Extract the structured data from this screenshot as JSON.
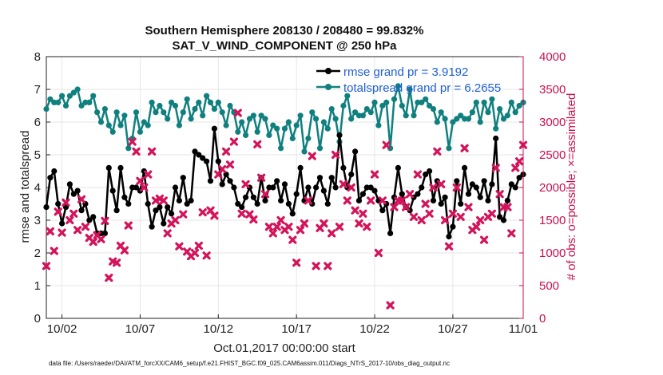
{
  "chart_data": {
    "type": "line",
    "title": "Southern Hemisphere 208130 / 208480 = 99.832%",
    "subtitle": "SAT_V_WIND_COMPONENT @ 250 hPa",
    "xlabel": "Oct.01,2017 00:00:00 start",
    "ylabel": "rmse and totalspread",
    "ylabel_right": "# of obs: o=possible; ×=assimilated",
    "xlim": [
      0.5,
      31.0
    ],
    "ylim": [
      0,
      8
    ],
    "ylim_right": [
      0,
      4000
    ],
    "xticks": [
      1.5,
      6.5,
      11.5,
      16.5,
      21.5,
      26.5,
      31.0
    ],
    "xtick_labels": [
      "10/02",
      "10/07",
      "10/12",
      "10/17",
      "10/22",
      "10/27",
      "11/01"
    ],
    "yticks": [
      "0",
      "1",
      "2",
      "3",
      "4",
      "5",
      "6",
      "7",
      "8"
    ],
    "yticks_right": [
      "0",
      "500",
      "1000",
      "1500",
      "2000",
      "2500",
      "3000",
      "3500",
      "4000"
    ],
    "grid": true,
    "legend_position": "top-right",
    "legend": [
      "rmse grand pr = 3.9192",
      "totalspread grand pr = 6.2655"
    ],
    "colors": {
      "rmse": "#000000",
      "spread": "#10807f",
      "obs": "#d3145b",
      "axis_right": "#c8104e",
      "legend_text": "#1f5fd6"
    },
    "series": [
      {
        "name": "rmse",
        "axis": "left",
        "x": [
          0.5,
          0.75,
          1.0,
          1.25,
          1.5,
          1.75,
          2.0,
          2.25,
          2.5,
          2.75,
          3.0,
          3.25,
          3.5,
          3.75,
          4.0,
          4.25,
          4.5,
          4.75,
          5.0,
          5.25,
          5.5,
          5.75,
          6.0,
          6.25,
          6.5,
          6.75,
          7.0,
          7.25,
          7.5,
          7.75,
          8.0,
          8.25,
          8.5,
          8.75,
          9.0,
          9.25,
          9.5,
          9.75,
          10.0,
          10.25,
          10.5,
          10.75,
          11.0,
          11.25,
          11.5,
          11.75,
          12.0,
          12.25,
          12.5,
          12.75,
          13.0,
          13.25,
          13.5,
          13.75,
          14.0,
          14.25,
          14.5,
          14.75,
          15.0,
          15.25,
          15.5,
          15.75,
          16.0,
          16.25,
          16.5,
          16.75,
          17.0,
          17.25,
          17.5,
          17.75,
          18.0,
          18.25,
          18.5,
          18.75,
          19.0,
          19.25,
          19.5,
          19.75,
          20.0,
          20.25,
          20.5,
          20.75,
          21.0,
          21.25,
          21.5,
          21.75,
          22.0,
          22.25,
          22.5,
          22.75,
          23.0,
          23.25,
          23.5,
          23.75,
          24.0,
          24.25,
          24.5,
          24.75,
          25.0,
          25.25,
          25.5,
          25.75,
          26.0,
          26.25,
          26.5,
          26.75,
          27.0,
          27.25,
          27.5,
          27.75,
          28.0,
          28.25,
          28.5,
          28.75,
          29.0,
          29.25,
          29.5,
          29.75,
          30.0,
          30.25,
          30.5,
          30.75,
          31.0
        ],
        "values": [
          3.4,
          4.3,
          4.5,
          3.5,
          2.9,
          3.4,
          4.1,
          3.8,
          3.9,
          3.3,
          3.5,
          3.0,
          3.1,
          2.6,
          2.6,
          2.6,
          4.6,
          3.9,
          3.3,
          4.6,
          3.7,
          3.5,
          4.0,
          4.0,
          3.9,
          4.5,
          3.5,
          2.8,
          3.3,
          3.4,
          2.9,
          3.4,
          3.2,
          4.0,
          3.6,
          4.3,
          3.5,
          3.6,
          5.1,
          5.0,
          4.9,
          4.8,
          4.2,
          5.8,
          4.8,
          4.1,
          4.4,
          4.2,
          4.0,
          3.5,
          3.4,
          3.7,
          4.0,
          3.7,
          3.5,
          4.3,
          3.6,
          4.0,
          4.0,
          4.2,
          3.6,
          4.1,
          3.5,
          3.2,
          3.8,
          4.6,
          3.6,
          4.0,
          3.5,
          4.0,
          4.3,
          3.9,
          3.5,
          4.3,
          4.0,
          5.6,
          4.6,
          4.0,
          4.4,
          5.1,
          3.6,
          3.8,
          4.0,
          4.0,
          3.9,
          3.6,
          3.3,
          3.5,
          2.6,
          3.7,
          4.6,
          3.8,
          3.4,
          3.3,
          3.7,
          3.8,
          4.0,
          4.4,
          4.5,
          3.6,
          4.2,
          3.5,
          3.7,
          2.5,
          2.8,
          4.2,
          3.5,
          4.6,
          3.8,
          4.1,
          4.0,
          3.7,
          4.2,
          3.6,
          4.1,
          5.5,
          3.1,
          3.0,
          3.6,
          4.1,
          4.0,
          4.3,
          4.4
        ],
        "marker": "circle"
      },
      {
        "name": "totalspread",
        "axis": "left",
        "x": [
          0.5,
          0.75,
          1.0,
          1.25,
          1.5,
          1.75,
          2.0,
          2.25,
          2.5,
          2.75,
          3.0,
          3.25,
          3.5,
          3.75,
          4.0,
          4.25,
          4.5,
          4.75,
          5.0,
          5.25,
          5.5,
          5.75,
          6.0,
          6.25,
          6.5,
          6.75,
          7.0,
          7.25,
          7.5,
          7.75,
          8.0,
          8.25,
          8.5,
          8.75,
          9.0,
          9.25,
          9.5,
          9.75,
          10.0,
          10.25,
          10.5,
          10.75,
          11.0,
          11.25,
          11.5,
          11.75,
          12.0,
          12.25,
          12.5,
          12.75,
          13.0,
          13.25,
          13.5,
          13.75,
          14.0,
          14.25,
          14.5,
          14.75,
          15.0,
          15.25,
          15.5,
          15.75,
          16.0,
          16.25,
          16.5,
          16.75,
          17.0,
          17.25,
          17.5,
          17.75,
          18.0,
          18.25,
          18.5,
          18.75,
          19.0,
          19.25,
          19.5,
          19.75,
          20.0,
          20.25,
          20.5,
          20.75,
          21.0,
          21.25,
          21.5,
          21.75,
          22.0,
          22.25,
          22.5,
          22.75,
          23.0,
          23.25,
          23.5,
          23.75,
          24.0,
          24.25,
          24.5,
          24.75,
          25.0,
          25.25,
          25.5,
          25.75,
          26.0,
          26.25,
          26.5,
          26.75,
          27.0,
          27.25,
          27.5,
          27.75,
          28.0,
          28.25,
          28.5,
          28.75,
          29.0,
          29.25,
          29.5,
          29.75,
          30.0,
          30.25,
          30.5,
          30.75,
          31.0
        ],
        "values": [
          6.4,
          6.7,
          6.6,
          6.6,
          6.8,
          6.5,
          6.8,
          6.9,
          7.0,
          6.5,
          6.6,
          6.6,
          6.8,
          6.3,
          6.0,
          6.4,
          5.9,
          5.7,
          6.3,
          5.9,
          6.2,
          5.2,
          5.5,
          6.3,
          5.7,
          6.0,
          5.9,
          6.6,
          6.3,
          6.5,
          6.3,
          6.1,
          6.6,
          6.5,
          5.9,
          6.3,
          6.7,
          6.1,
          6.4,
          6.6,
          6.2,
          6.8,
          6.6,
          6.4,
          6.6,
          6.3,
          5.9,
          6.5,
          6.3,
          5.7,
          6.0,
          5.6,
          6.1,
          6.2,
          5.7,
          6.2,
          6.1,
          5.6,
          5.9,
          5.8,
          5.2,
          5.8,
          6.0,
          5.5,
          5.9,
          6.2,
          5.1,
          5.5,
          6.3,
          6.1,
          5.2,
          6.0,
          5.8,
          6.4,
          6.1,
          5.4,
          6.5,
          6.8,
          6.1,
          6.3,
          6.2,
          6.2,
          6.4,
          6.3,
          6.6,
          5.9,
          6.5,
          6.6,
          5.2,
          6.7,
          7.1,
          6.5,
          6.2,
          7.0,
          6.2,
          6.6,
          6.6,
          6.7,
          6.5,
          6.4,
          6.0,
          6.3,
          6.1,
          5.2,
          6.0,
          6.1,
          6.2,
          6.1,
          6.1,
          6.3,
          6.6,
          6.0,
          6.6,
          6.3,
          6.7,
          5.8,
          6.4,
          6.1,
          6.2,
          6.6,
          6.3,
          6.5,
          6.6
        ],
        "marker": "circle"
      },
      {
        "name": "# of obs assimilated",
        "axis": "right",
        "x": [
          0.5,
          0.75,
          1.0,
          1.25,
          1.5,
          1.75,
          2.0,
          2.25,
          2.5,
          2.75,
          3.0,
          3.25,
          3.5,
          3.75,
          4.0,
          4.25,
          4.5,
          4.75,
          5.0,
          5.25,
          5.5,
          5.75,
          6.0,
          6.25,
          6.5,
          6.75,
          7.0,
          7.25,
          7.5,
          7.75,
          8.0,
          8.25,
          8.5,
          8.75,
          9.0,
          9.25,
          9.5,
          9.75,
          10.0,
          10.25,
          10.5,
          10.75,
          11.0,
          11.25,
          11.5,
          11.75,
          12.0,
          12.25,
          12.5,
          12.75,
          13.0,
          13.25,
          13.5,
          13.75,
          14.0,
          14.25,
          14.5,
          14.75,
          15.0,
          15.25,
          15.5,
          15.75,
          16.0,
          16.25,
          16.5,
          16.75,
          17.0,
          17.25,
          17.5,
          17.75,
          18.0,
          18.25,
          18.5,
          18.75,
          19.0,
          19.25,
          19.5,
          19.75,
          20.0,
          20.25,
          20.5,
          20.75,
          21.0,
          21.25,
          21.5,
          21.75,
          22.0,
          22.25,
          22.5,
          22.75,
          23.0,
          23.25,
          23.5,
          23.75,
          24.0,
          24.25,
          24.5,
          24.75,
          25.0,
          25.25,
          25.5,
          25.75,
          26.0,
          26.25,
          26.5,
          26.75,
          27.0,
          27.25,
          27.5,
          27.75,
          28.0,
          28.25,
          28.5,
          28.75,
          29.0,
          29.25,
          29.5,
          29.75,
          30.0,
          30.25,
          30.5,
          30.75,
          31.0
        ],
        "values": [
          800,
          1330,
          1030,
          1630,
          1310,
          1770,
          1500,
          1600,
          1350,
          1820,
          1400,
          1230,
          1170,
          1270,
          1210,
          1490,
          620,
          870,
          850,
          1110,
          1040,
          1420,
          2700,
          2550,
          2100,
          2000,
          2200,
          2550,
          1800,
          1830,
          1800,
          1300,
          1450,
          1500,
          1100,
          1590,
          1020,
          950,
          1000,
          1110,
          1620,
          960,
          1650,
          1570,
          2200,
          2280,
          2550,
          2350,
          2700,
          3140,
          1600,
          2050,
          1590,
          1510,
          2660,
          2150,
          1900,
          1400,
          1300,
          1400,
          1500,
          1350,
          1400,
          1200,
          850,
          1350,
          1450,
          1800,
          2480,
          800,
          1380,
          1450,
          800,
          1300,
          2500,
          1400,
          2050,
          1800,
          2000,
          1650,
          1450,
          1600,
          1400,
          1800,
          2200,
          1000,
          1800,
          2650,
          200,
          1700,
          1800,
          1800,
          1700,
          1900,
          1550,
          2200,
          1500,
          1750,
          1600,
          2000,
          2550,
          2050,
          1500,
          1100,
          1600,
          2000,
          1550,
          2600,
          1700,
          1350,
          1400,
          1500,
          1200,
          1550,
          1600,
          2300,
          1900,
          1700,
          1700,
          1300,
          2300,
          2400,
          2650
        ],
        "marker": "x"
      }
    ]
  },
  "footer": "data file: /Users/raeder/DAI/ATM_forcXX/CAM6_setup/f.e21.FHIST_BGC.f09_025.CAM6assim.011/Diags_NTrS_2017-10/obs_diag_output.nc"
}
